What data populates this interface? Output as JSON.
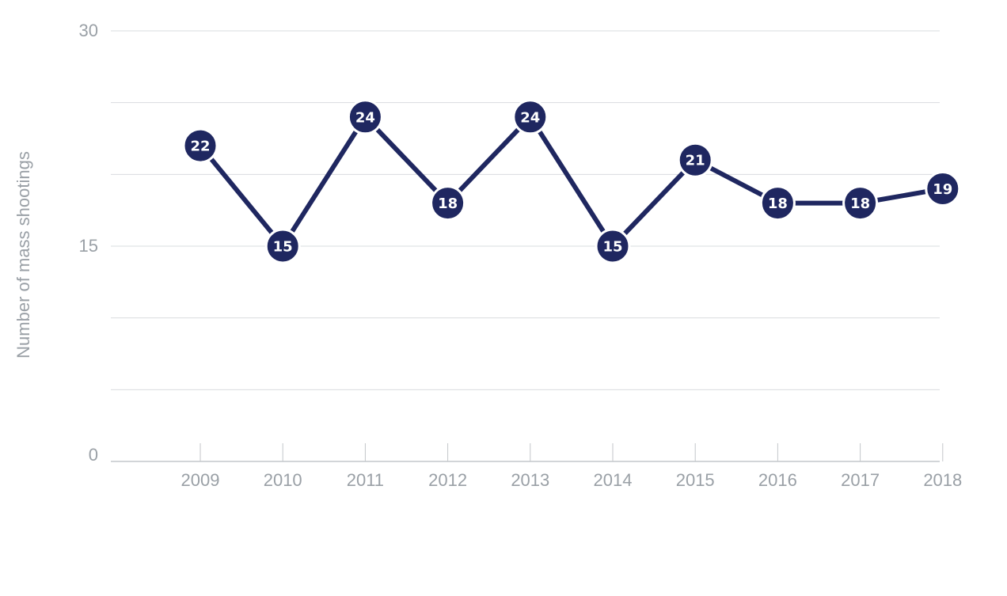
{
  "chart_data": {
    "type": "line",
    "title": "",
    "xlabel": "",
    "ylabel": "Number of mass shootings",
    "categories": [
      "2009",
      "2010",
      "2011",
      "2012",
      "2013",
      "2014",
      "2015",
      "2016",
      "2017",
      "2018"
    ],
    "series": [
      {
        "values": [
          22,
          15,
          24,
          18,
          24,
          15,
          21,
          18,
          18,
          19
        ],
        "color": "#1f2760"
      }
    ],
    "ylim": [
      0,
      30
    ],
    "y_ticks": [
      0,
      15,
      30
    ],
    "grid": true,
    "legend": "none",
    "data_labels": true
  }
}
